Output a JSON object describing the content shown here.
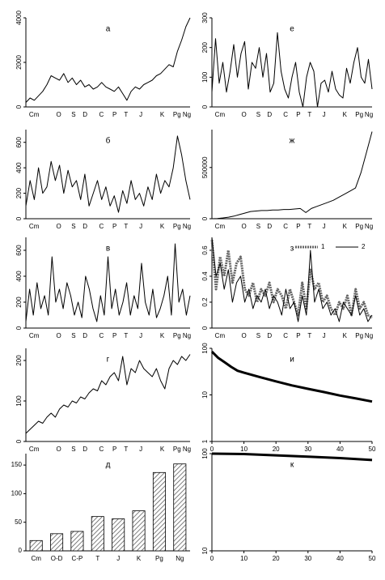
{
  "chart_data": [
    {
      "type": "line",
      "title": "а",
      "color": "#000",
      "xtick_labels": [
        "Cm",
        "O",
        "S",
        "D",
        "C",
        "P",
        "T",
        "J",
        "K",
        "Pg",
        "Ng"
      ],
      "values": [
        200,
        400,
        300,
        500,
        700,
        1000,
        1400,
        1300,
        1200,
        1500,
        1100,
        1300,
        1000,
        1200,
        900,
        1000,
        800,
        900,
        1100,
        900,
        800,
        700,
        900,
        600,
        300,
        700,
        900,
        800,
        1000,
        1100,
        1200,
        1400,
        1500,
        1700,
        1900,
        1800,
        2500,
        3000,
        3600,
        4000
      ],
      "ylim": [
        0,
        4000
      ],
      "yticks": [
        0,
        2000,
        4000
      ]
    },
    {
      "type": "line",
      "title": "б",
      "color": "#000",
      "xtick_labels": [
        "Cm",
        "O",
        "S",
        "D",
        "C",
        "P",
        "T",
        "J",
        "K",
        "Pg",
        "Ng"
      ],
      "values": [
        100,
        300,
        150,
        400,
        200,
        250,
        450,
        300,
        420,
        200,
        380,
        250,
        300,
        150,
        350,
        100,
        200,
        300,
        150,
        250,
        100,
        180,
        50,
        220,
        120,
        300,
        150,
        200,
        100,
        250,
        150,
        350,
        200,
        300,
        250,
        400,
        650,
        500,
        300,
        150
      ],
      "ylim": [
        0,
        700
      ],
      "yticks": [
        0,
        200,
        400,
        600
      ]
    },
    {
      "type": "line",
      "title": "в",
      "color": "#000",
      "xtick_labels": [
        "Cm",
        "O",
        "S",
        "D",
        "C",
        "P",
        "T",
        "J",
        "K",
        "Pg",
        "Ng"
      ],
      "values": [
        50,
        300,
        100,
        350,
        150,
        250,
        100,
        550,
        200,
        300,
        150,
        350,
        250,
        100,
        200,
        80,
        400,
        300,
        150,
        50,
        250,
        100,
        550,
        150,
        300,
        100,
        200,
        350,
        100,
        250,
        150,
        500,
        200,
        100,
        300,
        80,
        150,
        250,
        400,
        100,
        650,
        200,
        300,
        100,
        250
      ],
      "ylim": [
        0,
        700
      ],
      "yticks": [
        0,
        200,
        400,
        600
      ]
    },
    {
      "type": "line",
      "title": "г",
      "color": "#000",
      "xtick_labels": [
        "Cm",
        "O",
        "S",
        "D",
        "C",
        "P",
        "T",
        "J",
        "K",
        "Pg",
        "Ng"
      ],
      "values": [
        20,
        30,
        40,
        50,
        45,
        60,
        70,
        60,
        80,
        90,
        85,
        100,
        95,
        110,
        105,
        120,
        130,
        125,
        150,
        140,
        160,
        170,
        150,
        210,
        140,
        180,
        170,
        200,
        180,
        170,
        160,
        180,
        150,
        130,
        180,
        200,
        190,
        210,
        200,
        215
      ],
      "ylim": [
        0,
        230
      ],
      "yticks": [
        0,
        100,
        200
      ]
    },
    {
      "type": "bar",
      "title": "д",
      "color": "#000",
      "categories": [
        "Cm",
        "O-D",
        "C-P",
        "T",
        "J",
        "K",
        "Pg",
        "Ng"
      ],
      "values": [
        18,
        30,
        34,
        60,
        56,
        70,
        137,
        152
      ],
      "ylim": [
        0,
        170
      ],
      "yticks": [
        0,
        50,
        100,
        150
      ]
    },
    {
      "type": "line",
      "title": "е",
      "color": "#000",
      "xtick_labels": [
        "Cm",
        "O",
        "S",
        "D",
        "C",
        "P",
        "T",
        "J",
        "K",
        "Pg",
        "Ng"
      ],
      "values": [
        50,
        230,
        80,
        150,
        50,
        120,
        210,
        100,
        180,
        220,
        60,
        150,
        130,
        200,
        100,
        180,
        50,
        80,
        250,
        120,
        60,
        30,
        100,
        150,
        50,
        0,
        100,
        150,
        120,
        0,
        80,
        90,
        50,
        120,
        60,
        40,
        30,
        130,
        80,
        150,
        200,
        100,
        80,
        160,
        60
      ],
      "ylim": [
        0,
        300
      ],
      "yticks": [
        0,
        100,
        200,
        300
      ]
    },
    {
      "type": "line",
      "title": "ж",
      "color": "#000",
      "xtick_labels": [
        "Cm",
        "O",
        "S",
        "D",
        "C",
        "P",
        "T",
        "J",
        "K",
        "Pg",
        "Ng"
      ],
      "values": [
        0,
        2000,
        8000,
        15000,
        25000,
        40000,
        55000,
        70000,
        75000,
        80000,
        80000,
        85000,
        85000,
        90000,
        90000,
        95000,
        100000,
        60000,
        100000,
        120000,
        140000,
        160000,
        180000,
        210000,
        240000,
        270000,
        300000,
        450000,
        650000,
        850000
      ],
      "ylim": [
        0,
        870000
      ],
      "yticks": [
        0,
        500000
      ]
    },
    {
      "type": "line",
      "title": "з",
      "xtick_labels": [
        "Cm",
        "O",
        "S",
        "D",
        "C",
        "P",
        "T",
        "J",
        "K",
        "Pg",
        "Ng"
      ],
      "series": [
        {
          "name": "1",
          "color": "#666",
          "values": [
            0.68,
            0.3,
            0.55,
            0.4,
            0.6,
            0.35,
            0.5,
            0.55,
            0.3,
            0.25,
            0.35,
            0.2,
            0.3,
            0.25,
            0.35,
            0.2,
            0.3,
            0.25,
            0.15,
            0.3,
            0.2,
            0.1,
            0.35,
            0.15,
            0.45,
            0.3,
            0.35,
            0.2,
            0.25,
            0.15,
            0.1,
            0.2,
            0.15,
            0.25,
            0.1,
            0.3,
            0.15,
            0.2,
            0.1,
            0.08
          ]
        },
        {
          "name": "2",
          "color": "#000",
          "values": [
            0.7,
            0.4,
            0.5,
            0.3,
            0.45,
            0.2,
            0.35,
            0.4,
            0.2,
            0.3,
            0.15,
            0.25,
            0.2,
            0.3,
            0.15,
            0.25,
            0.2,
            0.1,
            0.3,
            0.15,
            0.2,
            0.05,
            0.25,
            0.1,
            0.6,
            0.2,
            0.3,
            0.15,
            0.2,
            0.1,
            0.15,
            0.05,
            0.2,
            0.15,
            0.1,
            0.25,
            0.1,
            0.15,
            0.05,
            0.1
          ]
        }
      ],
      "ylim": [
        0,
        0.7
      ],
      "yticks": [
        0,
        0.2,
        0.4,
        0.6
      ]
    },
    {
      "type": "line",
      "title": "и",
      "color": "#000",
      "log_y": true,
      "x": [
        0,
        2,
        4,
        6,
        8,
        10,
        15,
        20,
        25,
        30,
        35,
        40,
        45,
        50
      ],
      "values": [
        85,
        62,
        50,
        40,
        33,
        30,
        24,
        19.5,
        16,
        13.5,
        11.5,
        9.7,
        8.4,
        7.2
      ],
      "xlim": [
        0,
        50
      ],
      "xticks": [
        0,
        10,
        20,
        30,
        40,
        50
      ],
      "ylim": [
        1,
        100
      ],
      "yticks": [
        1,
        10,
        100
      ]
    },
    {
      "type": "line",
      "title": "к",
      "color": "#000",
      "log_y": true,
      "x": [
        0,
        10,
        20,
        30,
        40,
        50
      ],
      "values": [
        100,
        99,
        96,
        93,
        90,
        86
      ],
      "xlim": [
        0,
        50
      ],
      "xticks": [
        0,
        10,
        20,
        30,
        40,
        50
      ],
      "ylim": [
        10,
        100
      ],
      "yticks": [
        10,
        100
      ]
    }
  ]
}
